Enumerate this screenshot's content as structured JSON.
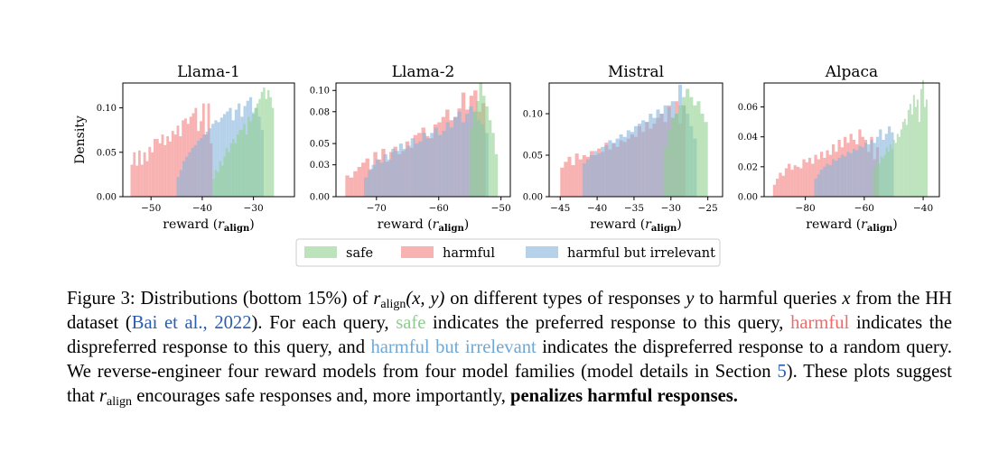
{
  "colors": {
    "safe": "#8fd18f",
    "harmful": "#f47f7f",
    "harmful_irrelevant": "#86b4dc",
    "cite": "#2a5db0"
  },
  "legend": {
    "placement": "bottom-center",
    "entries": [
      "safe",
      "harmful",
      "harmful but irrelevant"
    ]
  },
  "chart_data": [
    {
      "type": "bar",
      "title": "Llama-1",
      "xlabel": "reward (r_align)",
      "ylabel": "Density",
      "xlim": [
        -55.5,
        -22
      ],
      "ylim": [
        0,
        0.128
      ],
      "xticks": [
        -50,
        -40,
        -30
      ],
      "xtick_labels": [
        "−50",
        "−40",
        "−30"
      ],
      "yticks": [
        0,
        0.05,
        0.1
      ],
      "ytick_labels": [
        "0.00",
        "0.05",
        "0.10"
      ],
      "series": [
        {
          "name": "harmful",
          "range": [
            -54,
            -38
          ],
          "values": [
            0.036,
            0.05,
            0.035,
            0.052,
            0.036,
            0.05,
            0.04,
            0.056,
            0.05,
            0.065,
            0.065,
            0.06,
            0.07,
            0.058,
            0.068,
            0.062,
            0.074,
            0.07,
            0.08,
            0.068,
            0.086,
            0.088,
            0.082,
            0.09,
            0.094,
            0.1,
            0.074,
            0.085,
            0.105,
            0.07,
            0.105,
            0.06
          ]
        },
        {
          "name": "harmful but irrelevant",
          "range": [
            -45,
            -28
          ],
          "values": [
            0.022,
            0.03,
            0.04,
            0.045,
            0.05,
            0.055,
            0.058,
            0.063,
            0.066,
            0.07,
            0.073,
            0.077,
            0.082,
            0.086,
            0.084,
            0.089,
            0.093,
            0.096,
            0.1,
            0.086,
            0.098,
            0.105,
            0.09,
            0.102,
            0.108,
            0.112,
            0.093,
            0.1,
            0.09,
            0.075
          ]
        },
        {
          "name": "safe",
          "range": [
            -38,
            -26
          ],
          "values": [
            0.02,
            0.03,
            0.028,
            0.04,
            0.035,
            0.045,
            0.055,
            0.05,
            0.06,
            0.065,
            0.06,
            0.07,
            0.075,
            0.075,
            0.082,
            0.07,
            0.09,
            0.085,
            0.095,
            0.1,
            0.105,
            0.11,
            0.118,
            0.123,
            0.11,
            0.12,
            0.112,
            0.1
          ]
        }
      ]
    },
    {
      "type": "bar",
      "title": "Llama-2",
      "xlabel": "reward (r_align)",
      "ylabel": "",
      "xlim": [
        -76.5,
        -48.5
      ],
      "ylim": [
        0,
        0.107
      ],
      "xticks": [
        -70,
        -60,
        -50
      ],
      "xtick_labels": [
        "−70",
        "−60",
        "−50"
      ],
      "yticks": [
        0,
        0.03,
        0.05,
        0.08,
        0.1
      ],
      "ytick_labels": [
        "0.00",
        "0.03",
        "0.05",
        "0.08",
        "0.10"
      ],
      "series": [
        {
          "name": "harmful",
          "range": [
            -75,
            -52.5
          ],
          "values": [
            0.02,
            0.018,
            0.024,
            0.028,
            0.032,
            0.036,
            0.026,
            0.042,
            0.035,
            0.045,
            0.033,
            0.042,
            0.047,
            0.04,
            0.043,
            0.052,
            0.046,
            0.058,
            0.06,
            0.065,
            0.057,
            0.055,
            0.068,
            0.07,
            0.075,
            0.082,
            0.072,
            0.075,
            0.083,
            0.098,
            0.082,
            0.095,
            0.1,
            0.08,
            0.088
          ]
        },
        {
          "name": "harmful but irrelevant",
          "range": [
            -72,
            -52
          ],
          "values": [
            0.018,
            0.025,
            0.03,
            0.035,
            0.032,
            0.04,
            0.035,
            0.045,
            0.043,
            0.05,
            0.045,
            0.048,
            0.055,
            0.05,
            0.052,
            0.06,
            0.055,
            0.06,
            0.065,
            0.058,
            0.062,
            0.07,
            0.065,
            0.075,
            0.08,
            0.07,
            0.078,
            0.085,
            0.08,
            0.072,
            0.068,
            0.06
          ]
        },
        {
          "name": "safe",
          "range": [
            -55,
            -50.5
          ],
          "values": [
            0.065,
            0.08,
            0.09,
            0.107,
            0.095,
            0.085,
            0.072,
            0.06,
            0.04
          ]
        }
      ]
    },
    {
      "type": "bar",
      "title": "Mistral",
      "xlabel": "reward (r_align)",
      "ylabel": "",
      "xlim": [
        -46.5,
        -23
      ],
      "ylim": [
        0,
        0.137
      ],
      "xticks": [
        -45,
        -40,
        -35,
        -30,
        -25
      ],
      "xtick_labels": [
        "−45",
        "−40",
        "−35",
        "−30",
        "−25"
      ],
      "yticks": [
        0,
        0.05,
        0.1
      ],
      "ytick_labels": [
        "0.00",
        "0.05",
        "0.10"
      ],
      "series": [
        {
          "name": "harmful",
          "range": [
            -45,
            -28
          ],
          "values": [
            0.035,
            0.042,
            0.048,
            0.038,
            0.052,
            0.045,
            0.05,
            0.048,
            0.055,
            0.05,
            0.058,
            0.054,
            0.065,
            0.057,
            0.064,
            0.06,
            0.068,
            0.066,
            0.07,
            0.075,
            0.072,
            0.085,
            0.078,
            0.09,
            0.082,
            0.088,
            0.095,
            0.1,
            0.09,
            0.11,
            0.095,
            0.115,
            0.088,
            0.11
          ]
        },
        {
          "name": "harmful but irrelevant",
          "range": [
            -42,
            -26.5
          ],
          "values": [
            0.04,
            0.045,
            0.05,
            0.055,
            0.052,
            0.06,
            0.062,
            0.068,
            0.065,
            0.07,
            0.075,
            0.072,
            0.08,
            0.078,
            0.085,
            0.088,
            0.092,
            0.09,
            0.1,
            0.095,
            0.105,
            0.1,
            0.11,
            0.108,
            0.115,
            0.1,
            0.135,
            0.11,
            0.1,
            0.085,
            0.07
          ]
        },
        {
          "name": "safe",
          "range": [
            -31,
            -25
          ],
          "values": [
            0.06,
            0.08,
            0.095,
            0.1,
            0.11,
            0.12,
            0.13,
            0.12,
            0.11,
            0.115,
            0.1,
            0.09
          ]
        }
      ]
    },
    {
      "type": "bar",
      "title": "Alpaca",
      "xlabel": "reward (r_align)",
      "ylabel": "",
      "xlim": [
        -94,
        -34.5
      ],
      "ylim": [
        0,
        0.076
      ],
      "xticks": [
        -80,
        -60,
        -40
      ],
      "xtick_labels": [
        "−80",
        "−60",
        "−40"
      ],
      "yticks": [
        0,
        0.02,
        0.04,
        0.06
      ],
      "ytick_labels": [
        "0.00",
        "0.02",
        "0.04",
        "0.06"
      ],
      "series": [
        {
          "name": "harmful",
          "range": [
            -91,
            -55
          ],
          "values": [
            0.008,
            0.012,
            0.016,
            0.014,
            0.019,
            0.022,
            0.018,
            0.021,
            0.02,
            0.019,
            0.025,
            0.023,
            0.026,
            0.022,
            0.028,
            0.025,
            0.03,
            0.026,
            0.031,
            0.028,
            0.035,
            0.03,
            0.038,
            0.033,
            0.04,
            0.036,
            0.042,
            0.038,
            0.035,
            0.045,
            0.04,
            0.038,
            0.03,
            0.04,
            0.025,
            0.033
          ]
        },
        {
          "name": "harmful but irrelevant",
          "range": [
            -77,
            -50
          ],
          "values": [
            0.012,
            0.015,
            0.018,
            0.02,
            0.022,
            0.021,
            0.025,
            0.024,
            0.026,
            0.028,
            0.027,
            0.03,
            0.029,
            0.032,
            0.031,
            0.034,
            0.033,
            0.036,
            0.035,
            0.038,
            0.036,
            0.04,
            0.045,
            0.038,
            0.042,
            0.047,
            0.043
          ]
        },
        {
          "name": "safe",
          "range": [
            -57,
            -38.5
          ],
          "values": [
            0.018,
            0.021,
            0.024,
            0.022,
            0.027,
            0.026,
            0.028,
            0.033,
            0.03,
            0.035,
            0.032,
            0.038,
            0.036,
            0.042,
            0.04,
            0.045,
            0.05,
            0.052,
            0.048,
            0.058,
            0.062,
            0.055,
            0.068,
            0.06,
            0.065,
            0.05,
            0.072,
            0.078,
            0.06,
            0.065
          ]
        }
      ]
    }
  ],
  "caption": {
    "figure_label": "Figure 3:",
    "t1": " Distributions (bottom 15%) of ",
    "r_symbol": "r",
    "r_sub": "align",
    "t2_math": "(x, y)",
    "t3": " on different types of responses ",
    "y_var": "y",
    "t4": " to harmful queries ",
    "x_var": "x",
    "t5": " from the HH dataset (",
    "cite_text": "Bai et al., 2022",
    "t6": "). For each query, ",
    "safe_word": "safe",
    "t7": " indicates the preferred response to this query, ",
    "harmful_word": "harmful",
    "t8": " indicates the dispreferred response to this query, and ",
    "irrelevant_words": "harmful but irrelevant",
    "t9": " indicates the dispreferred response to a random query.  We reverse-engineer four reward models from four model families (model details in Section ",
    "section_ref": "5",
    "t10": ").  These plots suggest that ",
    "r2_symbol": "r",
    "r2_sub": "align",
    "t11": " encourages safe responses and, more importantly, ",
    "bold_end": "penalizes harmful responses."
  }
}
